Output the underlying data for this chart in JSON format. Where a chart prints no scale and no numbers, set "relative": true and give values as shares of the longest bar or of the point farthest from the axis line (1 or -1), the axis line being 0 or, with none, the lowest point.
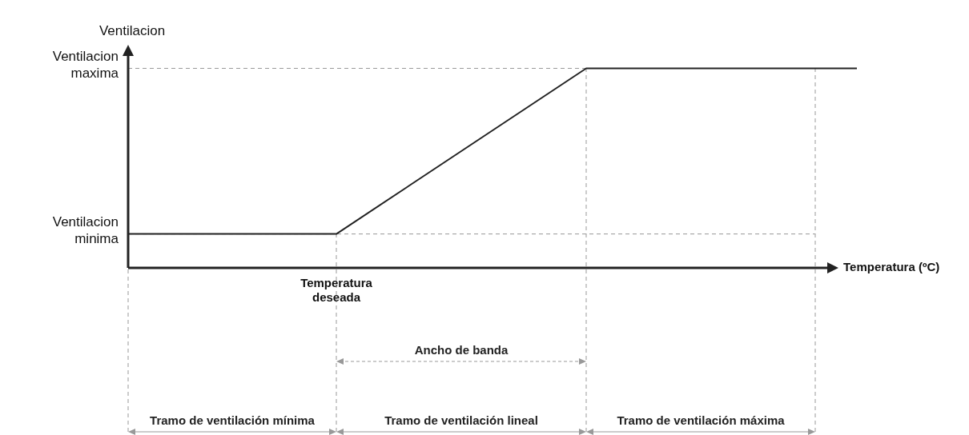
{
  "chart_data": {
    "type": "line",
    "relative": true,
    "xlabel": "Temperatura (ºC)",
    "ylabel": "Ventilacion",
    "categories": [
      null,
      null,
      null,
      null,
      null,
      null,
      null,
      null,
      null,
      null,
      null,
      null,
      null,
      null,
      null,
      null,
      null,
      null,
      null,
      null,
      null,
      null,
      null,
      null,
      null,
      null,
      null,
      null,
      null,
      null,
      null,
      null,
      null,
      null,
      null,
      null
    ],
    "series": [
      {
        "color": "#222222",
        "values": [
          0.17,
          null,
          null,
          null,
          null,
          null,
          null,
          null,
          null,
          null,
          0.17,
          null,
          null,
          null,
          null,
          null,
          null,
          null,
          null,
          null,
          null,
          null,
          1,
          null,
          null,
          null,
          null,
          null,
          null,
          null,
          null,
          null,
          null,
          1,
          null,
          1
        ]
      }
    ],
    "marker": "none",
    "line_style": "solid",
    "grid": true,
    "annotations": [
      "Temperatura deseada",
      "Ancho de banda",
      "Tramo de ventilación mínima",
      "Tramo de ventilación lineal",
      "Tramo de ventilación máxima",
      "Ventilacion maxima",
      "Ventilacion minima"
    ]
  }
}
